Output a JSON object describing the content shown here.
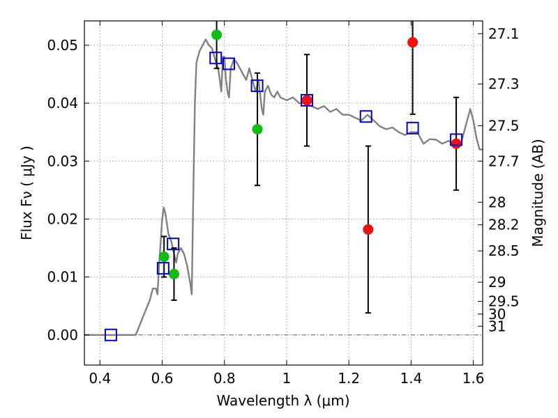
{
  "chart_data": {
    "type": "scatter",
    "xlabel": "Wavelength  λ (μm)",
    "ylabel": "Flux  Fν  ( μJy )",
    "y2label": "Magnitude (AB)",
    "xlim": [
      0.35,
      1.63
    ],
    "ylim": [
      -0.0052,
      0.0542
    ],
    "grid": true,
    "x_ticks": [
      0.4,
      0.6,
      0.8,
      1.0,
      1.2,
      1.4,
      1.6
    ],
    "x_tick_labels": [
      "0.4",
      "0.6",
      "0.8",
      "1",
      "1.2",
      "1.4",
      "1.6"
    ],
    "y_ticks": [
      0.0,
      0.01,
      0.02,
      0.03,
      0.04,
      0.05
    ],
    "y_tick_labels": [
      "0.00",
      "0.01",
      "0.02",
      "0.03",
      "0.04",
      "0.05"
    ],
    "mag_ticks": [
      {
        "label": "27.1",
        "flux": 0.052
      },
      {
        "label": "27.3",
        "flux": 0.0433
      },
      {
        "label": "27.5",
        "flux": 0.0361
      },
      {
        "label": "27.7",
        "flux": 0.03
      },
      {
        "label": "28",
        "flux": 0.0229
      },
      {
        "label": "28.2",
        "flux": 0.019
      },
      {
        "label": "28.5",
        "flux": 0.0145
      },
      {
        "label": "29",
        "flux": 0.0091
      },
      {
        "label": "29.5",
        "flux": 0.0058
      },
      {
        "label": "30",
        "flux": 0.0036
      },
      {
        "label": "31",
        "flux": 0.0015
      }
    ],
    "colors": {
      "model": "#808080",
      "model_fluxes": "#0000cc",
      "green_points": "#11bb11",
      "red_points": "#ee1111",
      "error_bars": "#000000",
      "grid": "#9a9a9a"
    },
    "model_sed": {
      "x": [
        0.35,
        0.4,
        0.45,
        0.5,
        0.515,
        0.53,
        0.545,
        0.56,
        0.57,
        0.58,
        0.585,
        0.59,
        0.6,
        0.605,
        0.61,
        0.62,
        0.63,
        0.64,
        0.645,
        0.65,
        0.66,
        0.67,
        0.68,
        0.69,
        0.695,
        0.7,
        0.705,
        0.71,
        0.72,
        0.73,
        0.74,
        0.75,
        0.76,
        0.77,
        0.78,
        0.785,
        0.79,
        0.795,
        0.8,
        0.805,
        0.81,
        0.815,
        0.82,
        0.83,
        0.84,
        0.85,
        0.86,
        0.87,
        0.88,
        0.89,
        0.9,
        0.91,
        0.92,
        0.925,
        0.93,
        0.94,
        0.95,
        0.96,
        0.97,
        0.98,
        1.0,
        1.02,
        1.04,
        1.06,
        1.08,
        1.1,
        1.12,
        1.14,
        1.16,
        1.18,
        1.2,
        1.22,
        1.24,
        1.26,
        1.28,
        1.3,
        1.32,
        1.34,
        1.36,
        1.38,
        1.4,
        1.42,
        1.44,
        1.46,
        1.48,
        1.5,
        1.52,
        1.54,
        1.56,
        1.58,
        1.59,
        1.6,
        1.61,
        1.62,
        1.63
      ],
      "y": [
        0.0,
        0.0,
        0.0,
        0.0,
        0.0,
        0.002,
        0.004,
        0.006,
        0.008,
        0.008,
        0.007,
        0.012,
        0.02,
        0.022,
        0.021,
        0.0175,
        0.016,
        0.0135,
        0.0125,
        0.014,
        0.015,
        0.014,
        0.012,
        0.009,
        0.007,
        0.024,
        0.04,
        0.047,
        0.049,
        0.05,
        0.051,
        0.05,
        0.0495,
        0.0475,
        0.046,
        0.044,
        0.042,
        0.048,
        0.048,
        0.044,
        0.042,
        0.041,
        0.046,
        0.0475,
        0.047,
        0.046,
        0.045,
        0.044,
        0.046,
        0.044,
        0.042,
        0.044,
        0.039,
        0.038,
        0.042,
        0.043,
        0.0415,
        0.041,
        0.042,
        0.041,
        0.0405,
        0.041,
        0.04,
        0.04,
        0.0395,
        0.039,
        0.0395,
        0.0385,
        0.039,
        0.038,
        0.038,
        0.0375,
        0.037,
        0.038,
        0.037,
        0.036,
        0.0355,
        0.0358,
        0.035,
        0.0345,
        0.035,
        0.035,
        0.033,
        0.0338,
        0.0337,
        0.033,
        0.0335,
        0.033,
        0.033,
        0.037,
        0.039,
        0.037,
        0.034,
        0.032,
        0.032
      ]
    },
    "model_fluxes": {
      "x": [
        0.435,
        0.603,
        0.635,
        0.772,
        0.814,
        0.905,
        1.065,
        1.255,
        1.405,
        1.545
      ],
      "y": [
        0.0,
        0.0115,
        0.0157,
        0.0478,
        0.0468,
        0.043,
        0.0405,
        0.0377,
        0.0357,
        0.0337
      ]
    },
    "green_points": {
      "x": [
        0.606,
        0.638,
        0.775,
        0.906
      ],
      "y": [
        0.0135,
        0.0105,
        0.0518,
        0.0355
      ],
      "err": [
        0.0035,
        0.0045,
        0.0058,
        0.0097
      ]
    },
    "red_points": {
      "x": [
        1.065,
        1.262,
        1.405,
        1.545
      ],
      "y": [
        0.0405,
        0.0182,
        0.0505,
        0.033
      ],
      "err": [
        0.0079,
        0.0144,
        0.0124,
        0.008
      ]
    }
  }
}
